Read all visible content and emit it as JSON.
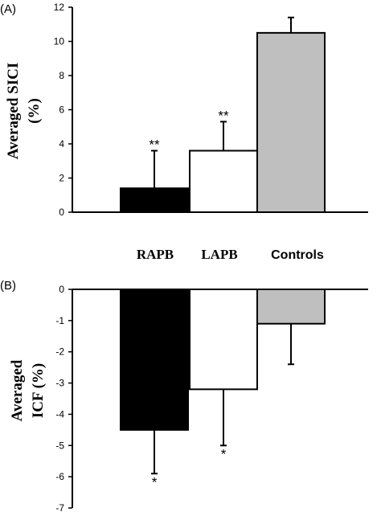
{
  "chart_data": [
    {
      "type": "bar",
      "panel": "(A)",
      "categories": [
        "RAPB",
        "LAPB",
        "Controls"
      ],
      "values": [
        1.4,
        3.6,
        10.5
      ],
      "errors": [
        2.2,
        1.7,
        0.9
      ],
      "error_direction": "up",
      "significance": [
        "**",
        "**",
        ""
      ],
      "colors": [
        "#000000",
        "#ffffff",
        "#bfbfbf"
      ],
      "ylabel": [
        "Averaged SICI",
        "(%)"
      ],
      "xlabel": "",
      "ylim": [
        0,
        12
      ],
      "yticks": [
        0,
        2,
        4,
        6,
        8,
        10,
        12
      ],
      "grid": false
    },
    {
      "type": "bar",
      "panel": "(B)",
      "categories": [
        "RAPB",
        "LAPB",
        "Controls"
      ],
      "values": [
        -4.5,
        -3.2,
        -1.1
      ],
      "errors": [
        1.4,
        1.8,
        1.3
      ],
      "error_direction": "down",
      "significance": [
        "*",
        "*",
        ""
      ],
      "colors": [
        "#000000",
        "#ffffff",
        "#bfbfbf"
      ],
      "ylabel": [
        "Averaged",
        "ICF (%)"
      ],
      "xlabel": "",
      "ylim": [
        -7,
        0
      ],
      "yticks": [
        0,
        -1,
        -2,
        -3,
        -4,
        -5,
        -6,
        -7
      ],
      "grid": false
    }
  ],
  "category_labels": [
    "RAPB",
    "LAPB",
    "Controls"
  ]
}
